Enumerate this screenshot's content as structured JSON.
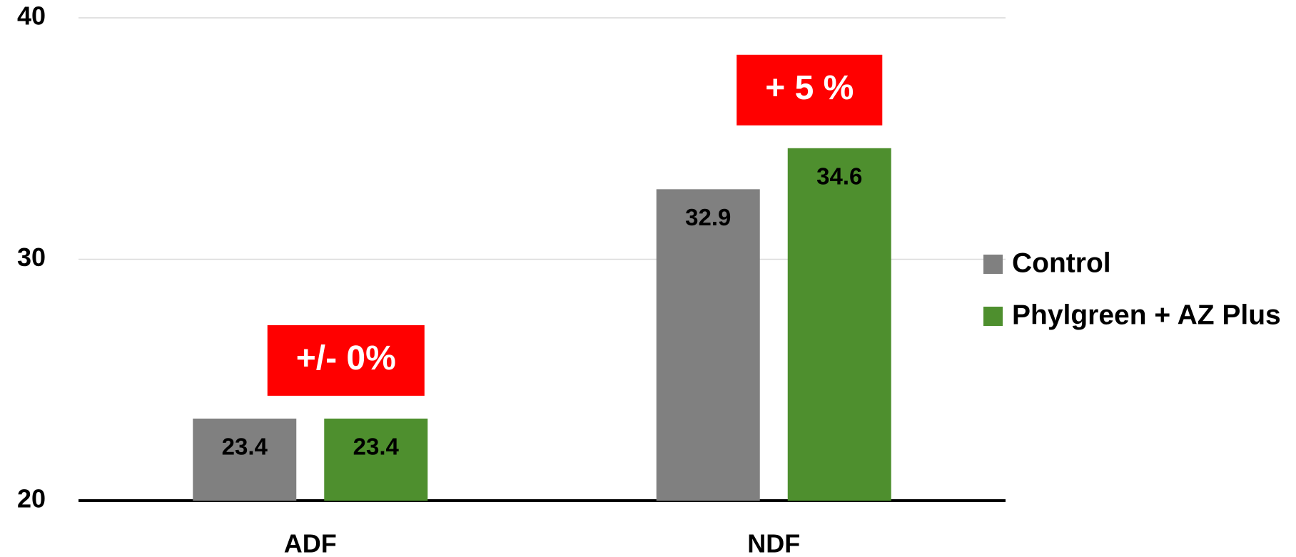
{
  "chart_data": {
    "type": "bar",
    "categories": [
      "ADF",
      "NDF"
    ],
    "series": [
      {
        "name": "Control",
        "color": "#808080",
        "values": [
          23.4,
          32.9
        ]
      },
      {
        "name": "Phylgreen + AZ Plus",
        "color": "#4e8f2e",
        "values": [
          23.4,
          34.6
        ]
      }
    ],
    "annotations": [
      "+/- 0%",
      "+ 5 %"
    ],
    "ylim": [
      20,
      40
    ],
    "yticks": [
      20,
      30,
      40
    ],
    "grid": true,
    "legend": "right"
  }
}
